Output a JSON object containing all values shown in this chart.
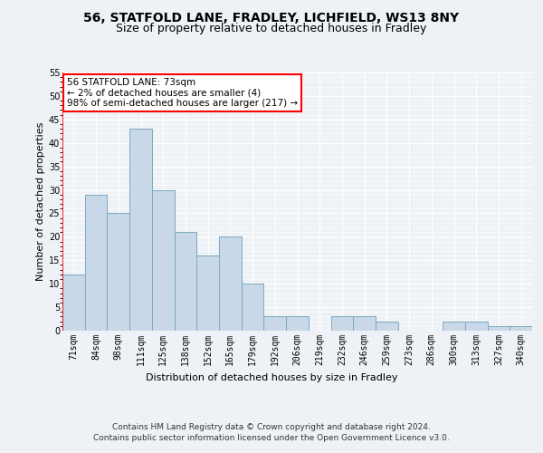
{
  "title1": "56, STATFOLD LANE, FRADLEY, LICHFIELD, WS13 8NY",
  "title2": "Size of property relative to detached houses in Fradley",
  "xlabel": "Distribution of detached houses by size in Fradley",
  "ylabel": "Number of detached properties",
  "categories": [
    "71sqm",
    "84sqm",
    "98sqm",
    "111sqm",
    "125sqm",
    "138sqm",
    "152sqm",
    "165sqm",
    "179sqm",
    "192sqm",
    "206sqm",
    "219sqm",
    "232sqm",
    "246sqm",
    "259sqm",
    "273sqm",
    "286sqm",
    "300sqm",
    "313sqm",
    "327sqm",
    "340sqm"
  ],
  "values": [
    12,
    29,
    25,
    43,
    30,
    21,
    16,
    20,
    10,
    3,
    3,
    0,
    3,
    3,
    2,
    0,
    0,
    2,
    2,
    1,
    1
  ],
  "bar_color": "#c8d8e8",
  "bar_edge_color": "#7aaabf",
  "annotation_text": "56 STATFOLD LANE: 73sqm\n← 2% of detached houses are smaller (4)\n98% of semi-detached houses are larger (217) →",
  "annotation_box_color": "white",
  "annotation_box_edge_color": "red",
  "ylim": [
    0,
    55
  ],
  "yticks": [
    0,
    5,
    10,
    15,
    20,
    25,
    30,
    35,
    40,
    45,
    50,
    55
  ],
  "footer_line1": "Contains HM Land Registry data © Crown copyright and database right 2024.",
  "footer_line2": "Contains public sector information licensed under the Open Government Licence v3.0.",
  "bg_color": "#eef2f6",
  "plot_bg_color": "#eef2f6",
  "grid_color": "#ffffff",
  "title1_fontsize": 10,
  "title2_fontsize": 9,
  "annotation_fontsize": 7.5,
  "ylabel_fontsize": 8,
  "xlabel_fontsize": 8,
  "footer_fontsize": 6.5,
  "tick_fontsize": 7
}
